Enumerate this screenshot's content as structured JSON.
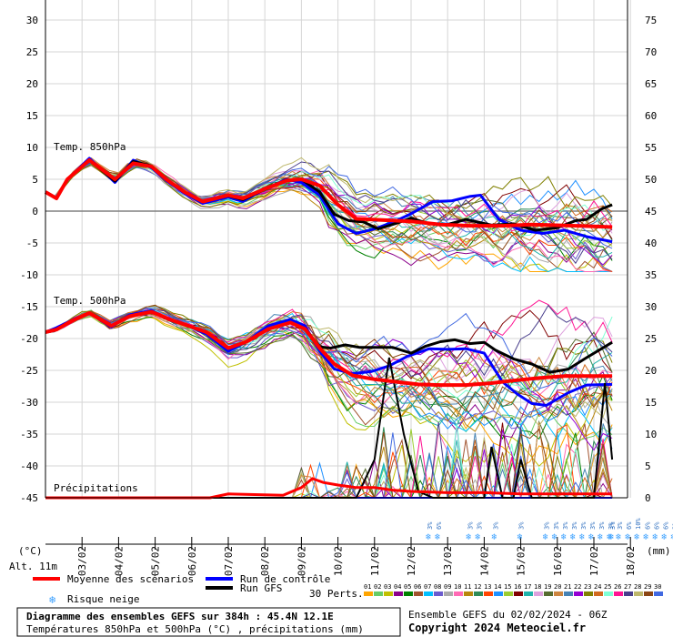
{
  "chart_data": {
    "type": "line",
    "left_axis": {
      "ticks": [
        "30",
        "25",
        "20",
        "15",
        "10",
        "5",
        "0",
        "-5",
        "-10",
        "-15",
        "-20",
        "-25",
        "-30",
        "-35",
        "-40",
        "-45"
      ],
      "unit": "(°C)"
    },
    "right_axis": {
      "ticks": [
        "75",
        "70",
        "65",
        "60",
        "55",
        "50",
        "45",
        "40",
        "35",
        "30",
        "25",
        "20",
        "15",
        "10",
        "5",
        "0"
      ],
      "unit": "(mm)"
    },
    "date_ticks": [
      "03/02",
      "04/02",
      "05/02",
      "06/02",
      "07/02",
      "08/02",
      "09/02",
      "10/02",
      "11/02",
      "12/02",
      "13/02",
      "14/02",
      "15/02",
      "16/02",
      "17/02",
      "18/02"
    ],
    "labels": {
      "t850": "Temp. 850hPa",
      "t500": "Temp. 500hPa",
      "precip": "Précipitations",
      "alt": "Alt. 11m"
    },
    "snow_markers": [
      {
        "day": 10.5,
        "labels": [
          "3%",
          "6%"
        ]
      },
      {
        "day": 11.6,
        "labels": [
          "3%",
          "3%"
        ]
      },
      {
        "day": 12.3,
        "labels": [
          "3%"
        ]
      },
      {
        "day": 13.0,
        "labels": [
          "3%"
        ]
      },
      {
        "day": 13.7,
        "labels": [
          "3%",
          "3%",
          "3%",
          "3%",
          "3%",
          "3%",
          "3%",
          "3%",
          "3%",
          "6%",
          "10%",
          "6%",
          "6%",
          "6%",
          "3%"
        ]
      },
      {
        "day": 15.5,
        "labels": [
          "3%"
        ]
      }
    ],
    "series": [
      {
        "name": "Moyenne des scénarios",
        "color": "#ff0000",
        "role": "mean",
        "t850": [
          [
            0,
            3
          ],
          [
            0.3,
            2
          ],
          [
            0.6,
            5
          ],
          [
            1.2,
            8
          ],
          [
            1.9,
            5
          ],
          [
            2.4,
            7.5
          ],
          [
            2.9,
            7
          ],
          [
            3.3,
            5
          ],
          [
            3.8,
            3
          ],
          [
            4.3,
            1.5
          ],
          [
            5,
            2.5
          ],
          [
            5.4,
            2
          ],
          [
            6,
            3.5
          ],
          [
            6.6,
            4.8
          ],
          [
            7,
            5
          ],
          [
            7.5,
            4
          ],
          [
            8,
            1
          ],
          [
            8.5,
            -1.2
          ],
          [
            9.2,
            -1.4
          ],
          [
            10,
            -1.6
          ],
          [
            10.8,
            -2.1
          ],
          [
            11.6,
            -2.3
          ],
          [
            12.5,
            -2.3
          ],
          [
            13.3,
            -2.1
          ],
          [
            14.5,
            -2.3
          ],
          [
            15.5,
            -2.5
          ]
        ],
        "t500": [
          [
            0,
            -19
          ],
          [
            0.3,
            -18.6
          ],
          [
            0.7,
            -17.3
          ],
          [
            1.2,
            -16
          ],
          [
            1.8,
            -18
          ],
          [
            2.3,
            -16.5
          ],
          [
            2.9,
            -15.8
          ],
          [
            3.4,
            -17
          ],
          [
            3.9,
            -18
          ],
          [
            4.4,
            -19
          ],
          [
            5,
            -21.5
          ],
          [
            5.5,
            -20.5
          ],
          [
            6.1,
            -18.5
          ],
          [
            6.7,
            -17.5
          ],
          [
            7.1,
            -18.5
          ],
          [
            7.5,
            -21.5
          ],
          [
            7.9,
            -24
          ],
          [
            8.4,
            -25.8
          ],
          [
            9,
            -26.4
          ],
          [
            9.6,
            -26.8
          ],
          [
            10.2,
            -27.2
          ],
          [
            10.8,
            -27.3
          ],
          [
            11.5,
            -27.3
          ],
          [
            12.2,
            -27
          ],
          [
            12.8,
            -26.6
          ],
          [
            13.5,
            -26.2
          ],
          [
            14.2,
            -25.9
          ],
          [
            15.5,
            -25.9
          ]
        ],
        "precip": [
          [
            0,
            0
          ],
          [
            4.5,
            0
          ],
          [
            5,
            0.3
          ],
          [
            6.5,
            0.2
          ],
          [
            7,
            0.8
          ],
          [
            7.3,
            1.5
          ],
          [
            7.6,
            1.2
          ],
          [
            8,
            1
          ],
          [
            8.5,
            0.8
          ],
          [
            9,
            0.8
          ],
          [
            9.5,
            0.6
          ],
          [
            10,
            0.5
          ],
          [
            11,
            0.4
          ],
          [
            12,
            0.4
          ],
          [
            13,
            0.3
          ],
          [
            14,
            0.3
          ],
          [
            15.5,
            0.3
          ]
        ]
      },
      {
        "name": "Run de contrôle",
        "color": "#0000ff",
        "role": "control",
        "t850": [
          [
            0,
            3
          ],
          [
            0.3,
            2
          ],
          [
            0.6,
            5
          ],
          [
            1.2,
            8.3
          ],
          [
            1.9,
            4.5
          ],
          [
            2.4,
            8
          ],
          [
            2.9,
            6.8
          ],
          [
            3.3,
            4.8
          ],
          [
            3.8,
            2.8
          ],
          [
            4.3,
            1.2
          ],
          [
            5,
            2.2
          ],
          [
            5.4,
            1.5
          ],
          [
            6,
            3.5
          ],
          [
            6.6,
            5
          ],
          [
            7,
            4.5
          ],
          [
            7.5,
            2.5
          ],
          [
            8,
            -2
          ],
          [
            8.5,
            -3.5
          ],
          [
            9,
            -2.8
          ],
          [
            9.6,
            -1.5
          ],
          [
            10,
            -0.4
          ],
          [
            10.6,
            1.5
          ],
          [
            11.1,
            1.6
          ],
          [
            11.6,
            2.3
          ],
          [
            11.9,
            2.5
          ],
          [
            12.4,
            -1.3
          ],
          [
            13,
            -3
          ],
          [
            13.6,
            -3.5
          ],
          [
            14.2,
            -3
          ],
          [
            14.8,
            -4
          ],
          [
            15.5,
            -4.8
          ]
        ],
        "t500": [
          [
            0,
            -19
          ],
          [
            0.3,
            -18.3
          ],
          [
            0.7,
            -17.2
          ],
          [
            1.2,
            -16
          ],
          [
            1.8,
            -18.2
          ],
          [
            2.3,
            -16.3
          ],
          [
            2.9,
            -15.6
          ],
          [
            3.4,
            -17.1
          ],
          [
            3.9,
            -18
          ],
          [
            4.4,
            -19.3
          ],
          [
            5,
            -22
          ],
          [
            5.5,
            -20.5
          ],
          [
            6.1,
            -18
          ],
          [
            6.7,
            -17
          ],
          [
            7.1,
            -18
          ],
          [
            7.5,
            -22
          ],
          [
            7.9,
            -24.8
          ],
          [
            8.4,
            -25.5
          ],
          [
            8.9,
            -25.2
          ],
          [
            9.4,
            -24.3
          ],
          [
            9.9,
            -22.8
          ],
          [
            10.5,
            -21.6
          ],
          [
            11,
            -21.7
          ],
          [
            11.5,
            -21.6
          ],
          [
            12,
            -22.3
          ],
          [
            12.5,
            -26.8
          ],
          [
            12.9,
            -28.7
          ],
          [
            13.3,
            -30.2
          ],
          [
            13.7,
            -30.5
          ],
          [
            14.3,
            -28.5
          ],
          [
            14.8,
            -27.3
          ],
          [
            15.5,
            -27.2
          ]
        ],
        "precip": [
          [
            0,
            0
          ],
          [
            15.5,
            0
          ]
        ]
      },
      {
        "name": "Run GFS",
        "color": "#000000",
        "role": "gfs",
        "t850": [
          [
            0,
            3
          ],
          [
            0.3,
            2
          ],
          [
            0.6,
            5
          ],
          [
            1.2,
            8
          ],
          [
            1.9,
            4.7
          ],
          [
            2.4,
            7.8
          ],
          [
            2.9,
            7.1
          ],
          [
            3.3,
            5
          ],
          [
            3.8,
            3
          ],
          [
            4.3,
            1.5
          ],
          [
            5,
            2.4
          ],
          [
            5.4,
            1.8
          ],
          [
            6,
            3.4
          ],
          [
            6.6,
            4.9
          ],
          [
            7,
            5
          ],
          [
            7.5,
            3
          ],
          [
            7.9,
            -0.5
          ],
          [
            8.3,
            -1.5
          ],
          [
            8.7,
            -1.7
          ],
          [
            9.1,
            -2.8
          ],
          [
            9.6,
            -1.9
          ],
          [
            10,
            -1.1
          ],
          [
            10.5,
            -2
          ],
          [
            11,
            -2.1
          ],
          [
            11.5,
            -1.3
          ],
          [
            12.2,
            -2.2
          ],
          [
            12.8,
            -2
          ],
          [
            13.4,
            -3
          ],
          [
            14,
            -2.6
          ],
          [
            14.5,
            -1.5
          ],
          [
            14.8,
            -1.3
          ],
          [
            15.2,
            0.3
          ],
          [
            15.5,
            1
          ]
        ],
        "t500": [
          [
            0,
            -19
          ],
          [
            0.3,
            -18.6
          ],
          [
            0.7,
            -17.3
          ],
          [
            1.2,
            -16
          ],
          [
            1.8,
            -18
          ],
          [
            2.3,
            -16.5
          ],
          [
            2.9,
            -15.8
          ],
          [
            3.4,
            -17
          ],
          [
            3.9,
            -18
          ],
          [
            4.4,
            -19
          ],
          [
            5,
            -21.5
          ],
          [
            5.5,
            -20.5
          ],
          [
            6.1,
            -18.5
          ],
          [
            6.7,
            -17.5
          ],
          [
            7.1,
            -18.5
          ],
          [
            7.5,
            -21.3
          ],
          [
            7.8,
            -21.5
          ],
          [
            8.2,
            -21
          ],
          [
            8.6,
            -21.4
          ],
          [
            9,
            -21.4
          ],
          [
            9.5,
            -21.4
          ],
          [
            10,
            -22.3
          ],
          [
            10.4,
            -21.2
          ],
          [
            10.8,
            -20.5
          ],
          [
            11.2,
            -20.2
          ],
          [
            11.6,
            -20.8
          ],
          [
            12,
            -20.6
          ],
          [
            12.3,
            -21.8
          ],
          [
            12.8,
            -23.2
          ],
          [
            13.3,
            -24
          ],
          [
            13.8,
            -25.3
          ],
          [
            14.3,
            -24.8
          ],
          [
            14.8,
            -23
          ],
          [
            15.5,
            -20.6
          ]
        ],
        "precip": [
          [
            0,
            0
          ],
          [
            8.5,
            0
          ],
          [
            9,
            3
          ],
          [
            9.4,
            11
          ],
          [
            9.8,
            5
          ],
          [
            10.2,
            0.5
          ],
          [
            10.6,
            0
          ],
          [
            12,
            0
          ],
          [
            12.2,
            4
          ],
          [
            12.5,
            0
          ],
          [
            12.8,
            0
          ],
          [
            13,
            3
          ],
          [
            13.3,
            0
          ],
          [
            15,
            0
          ],
          [
            15.3,
            9
          ],
          [
            15.5,
            3
          ]
        ]
      }
    ]
  },
  "legend": {
    "mean": "Moyenne des scénarios",
    "control": "Run de contrôle",
    "gfs": "Run GFS",
    "snow": "Risque neige",
    "perts": "30 Perts.",
    "pert_numbers": [
      "01",
      "02",
      "03",
      "04",
      "05",
      "06",
      "07",
      "08",
      "09",
      "10",
      "11",
      "12",
      "13",
      "14",
      "15",
      "16",
      "17",
      "18",
      "19",
      "20",
      "21",
      "22",
      "23",
      "24",
      "25",
      "26",
      "27",
      "28",
      "29",
      "30"
    ],
    "pert_colors": [
      "#ffa500",
      "#66cc66",
      "#c0c000",
      "#8b008b",
      "#008000",
      "#a0522d",
      "#00bfff",
      "#6a5acd",
      "#aaaaaa",
      "#ff69b4",
      "#b8860b",
      "#2e8b57",
      "#ff4500",
      "#1e90ff",
      "#9acd32",
      "#800000",
      "#20b2aa",
      "#dda0dd",
      "#556b2f",
      "#cd853f",
      "#4682b4",
      "#9400d3",
      "#808000",
      "#d2691e",
      "#7fffd4",
      "#ff1493",
      "#483d8b",
      "#bdb76b",
      "#8b4513",
      "#4169e1"
    ]
  },
  "footer": {
    "title": "Diagramme des ensembles GEFS sur 384h : 45.4N 12.1E",
    "subtitle": "Températures 850hPa et 500hPa (°C) , précipitations (mm)",
    "run": "Ensemble GEFS du 02/02/2024 - 06Z",
    "copyright": "Copyright 2024 Meteociel.fr"
  }
}
